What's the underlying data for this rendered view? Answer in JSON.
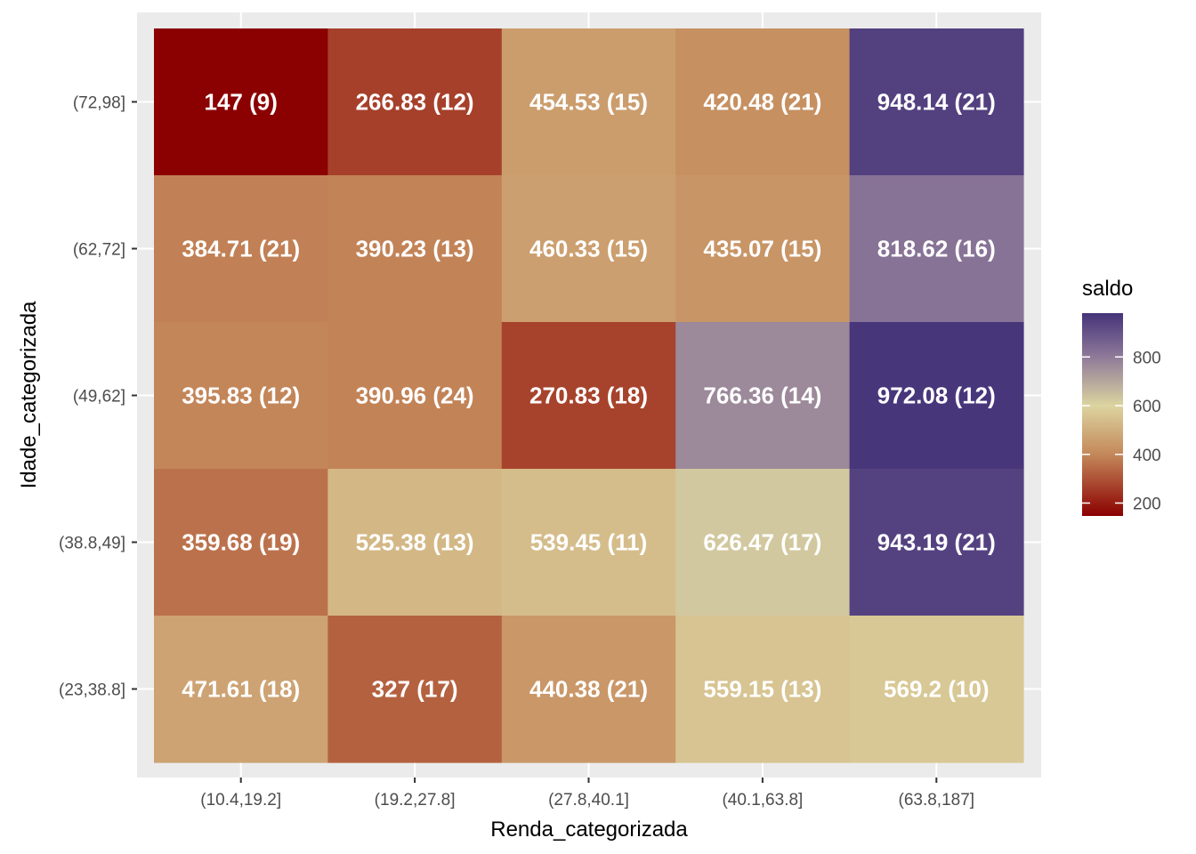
{
  "chart_data": {
    "type": "heatmap",
    "title": "",
    "xlabel": "Renda_categorizada",
    "ylabel": "Idade_categorizada",
    "x_categories": [
      "(10.4,19.2]",
      "(19.2,27.8]",
      "(27.8,40.1]",
      "(40.1,63.8]",
      "(63.8,187]"
    ],
    "y_categories": [
      "(23,38.8]",
      "(38.8,49]",
      "(49,62]",
      "(62,72]",
      "(72,98]"
    ],
    "cells": [
      {
        "x": "(10.4,19.2]",
        "y": "(72,98]",
        "value": 147,
        "label": "147 (9)"
      },
      {
        "x": "(19.2,27.8]",
        "y": "(72,98]",
        "value": 266.83,
        "label": "266.83 (12)"
      },
      {
        "x": "(27.8,40.1]",
        "y": "(72,98]",
        "value": 454.53,
        "label": "454.53 (15)"
      },
      {
        "x": "(40.1,63.8]",
        "y": "(72,98]",
        "value": 420.48,
        "label": "420.48 (21)"
      },
      {
        "x": "(63.8,187]",
        "y": "(72,98]",
        "value": 948.14,
        "label": "948.14 (21)"
      },
      {
        "x": "(10.4,19.2]",
        "y": "(62,72]",
        "value": 384.71,
        "label": "384.71 (21)"
      },
      {
        "x": "(19.2,27.8]",
        "y": "(62,72]",
        "value": 390.23,
        "label": "390.23 (13)"
      },
      {
        "x": "(27.8,40.1]",
        "y": "(62,72]",
        "value": 460.33,
        "label": "460.33 (15)"
      },
      {
        "x": "(40.1,63.8]",
        "y": "(62,72]",
        "value": 435.07,
        "label": "435.07 (15)"
      },
      {
        "x": "(63.8,187]",
        "y": "(62,72]",
        "value": 818.62,
        "label": "818.62 (16)"
      },
      {
        "x": "(10.4,19.2]",
        "y": "(49,62]",
        "value": 395.83,
        "label": "395.83 (12)"
      },
      {
        "x": "(19.2,27.8]",
        "y": "(49,62]",
        "value": 390.96,
        "label": "390.96 (24)"
      },
      {
        "x": "(27.8,40.1]",
        "y": "(49,62]",
        "value": 270.83,
        "label": "270.83 (18)"
      },
      {
        "x": "(40.1,63.8]",
        "y": "(49,62]",
        "value": 766.36,
        "label": "766.36 (14)"
      },
      {
        "x": "(63.8,187]",
        "y": "(49,62]",
        "value": 972.08,
        "label": "972.08 (12)"
      },
      {
        "x": "(10.4,19.2]",
        "y": "(38.8,49]",
        "value": 359.68,
        "label": "359.68 (19)"
      },
      {
        "x": "(19.2,27.8]",
        "y": "(38.8,49]",
        "value": 525.38,
        "label": "525.38 (13)"
      },
      {
        "x": "(27.8,40.1]",
        "y": "(38.8,49]",
        "value": 539.45,
        "label": "539.45 (11)"
      },
      {
        "x": "(40.1,63.8]",
        "y": "(38.8,49]",
        "value": 626.47,
        "label": "626.47 (17)"
      },
      {
        "x": "(63.8,187]",
        "y": "(38.8,49]",
        "value": 943.19,
        "label": "943.19 (21)"
      },
      {
        "x": "(10.4,19.2]",
        "y": "(23,38.8]",
        "value": 471.61,
        "label": "471.61 (18)"
      },
      {
        "x": "(19.2,27.8]",
        "y": "(23,38.8]",
        "value": 327,
        "label": "327 (17)"
      },
      {
        "x": "(27.8,40.1]",
        "y": "(23,38.8]",
        "value": 440.38,
        "label": "440.38 (21)"
      },
      {
        "x": "(40.1,63.8]",
        "y": "(23,38.8]",
        "value": 559.15,
        "label": "559.15 (13)"
      },
      {
        "x": "(63.8,187]",
        "y": "(23,38.8]",
        "value": 569.2,
        "label": "569.2 (10)"
      }
    ],
    "legend": {
      "title": "saldo",
      "position": "right",
      "range": [
        147,
        980
      ],
      "breaks": [
        200,
        400,
        600,
        800
      ],
      "break_labels": [
        "200",
        "400",
        "600",
        "800"
      ],
      "color_stops": [
        {
          "value": 147,
          "color": "#8b0000"
        },
        {
          "value": 400,
          "color": "#c4885a"
        },
        {
          "value": 600,
          "color": "#dcd4a0"
        },
        {
          "value": 800,
          "color": "#8f7a99"
        },
        {
          "value": 980,
          "color": "#45337a"
        }
      ]
    },
    "panel_background": "#ebebeb",
    "grid": true
  }
}
